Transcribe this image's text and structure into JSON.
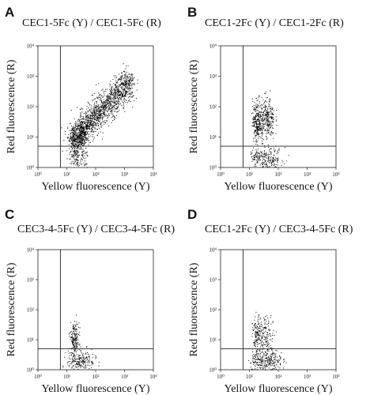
{
  "figure": {
    "panels": [
      {
        "letter": "A",
        "title": "CEC1-5Fc (Y) / CEC1-5Fc (R)"
      },
      {
        "letter": "B",
        "title": "CEC1-2Fc (Y) / CEC1-2Fc (R)"
      },
      {
        "letter": "C",
        "title": "CEC3-4-5Fc (Y) / CEC3-4-5Fc (R)"
      },
      {
        "letter": "D",
        "title": "CEC1-2Fc (Y) / CEC3-4-5Fc (R)"
      }
    ]
  },
  "chart_data": [
    {
      "type": "scatter",
      "title": "CEC1-5Fc (Y) / CEC1-5Fc (R)",
      "xlabel": "Yellow fluorescence (Y)",
      "ylabel": "Red fluorescence (R)",
      "x_scale": "log",
      "y_scale": "log",
      "xlim": [
        1,
        10000
      ],
      "ylim": [
        1,
        10000
      ],
      "xticks": [
        "10⁰",
        "10¹",
        "10²",
        "10³",
        "10⁴"
      ],
      "yticks": [
        "10⁰",
        "10¹",
        "10²",
        "10³",
        "10⁴"
      ],
      "gate": {
        "x": 6,
        "y": 5
      },
      "clusters": [
        {
          "kind": "diagonal",
          "x_range": [
            15,
            1500
          ],
          "y_at_x_min": 8,
          "y_at_x_max": 700,
          "spread": 0.25,
          "n": 1500
        },
        {
          "kind": "blob",
          "x": [
            18,
            1.25
          ],
          "y": [
            8,
            1.8
          ],
          "n": 160
        },
        {
          "kind": "blob",
          "x": [
            32,
            1.2
          ],
          "y": [
            12,
            1.8
          ],
          "n": 180
        },
        {
          "kind": "blob",
          "x": [
            20,
            1.25
          ],
          "y": [
            2,
            1.5
          ],
          "n": 60
        },
        {
          "kind": "blob",
          "x": [
            35,
            1.25
          ],
          "y": [
            2,
            1.5
          ],
          "n": 40
        }
      ]
    },
    {
      "type": "scatter",
      "title": "CEC1-2Fc (Y) / CEC1-2Fc (R)",
      "xlabel": "Yellow fluorescence (Y)",
      "ylabel": "Red fluorescence (R)",
      "x_scale": "log",
      "y_scale": "log",
      "xlim": [
        1,
        10000
      ],
      "ylim": [
        1,
        10000
      ],
      "xticks": [
        "10⁰",
        "10¹",
        "10²",
        "10³",
        "10⁴"
      ],
      "yticks": [
        "10⁰",
        "10¹",
        "10²",
        "10³",
        "10⁴"
      ],
      "gate": {
        "x": 6,
        "y": 5
      },
      "clusters": [
        {
          "kind": "blob",
          "x": [
            18,
            1.2
          ],
          "y": [
            35,
            2.2
          ],
          "n": 240
        },
        {
          "kind": "blob",
          "x": [
            40,
            1.35
          ],
          "y": [
            40,
            2.2
          ],
          "n": 280
        },
        {
          "kind": "blob",
          "x": [
            22,
            1.5
          ],
          "y": [
            2,
            1.5
          ],
          "n": 110
        },
        {
          "kind": "blob",
          "x": [
            55,
            1.6
          ],
          "y": [
            2,
            1.5
          ],
          "n": 130
        }
      ]
    },
    {
      "type": "scatter",
      "title": "CEC3-4-5Fc (Y) / CEC3-4-5Fc (R)",
      "xlabel": "Yellow fluorescence (Y)",
      "ylabel": "Red fluorescence (R)",
      "x_scale": "log",
      "y_scale": "log",
      "xlim": [
        1,
        10000
      ],
      "ylim": [
        1,
        10000
      ],
      "xticks": [
        "10⁰",
        "10¹",
        "10²",
        "10³",
        "10⁴"
      ],
      "yticks": [
        "10⁰",
        "10¹",
        "10²",
        "10³",
        "10⁴"
      ],
      "gate": {
        "x": 6,
        "y": 5
      },
      "clusters": [
        {
          "kind": "blob",
          "x": [
            18,
            1.2
          ],
          "y": [
            10,
            2.0
          ],
          "n": 180
        },
        {
          "kind": "blob",
          "x": [
            22,
            1.5
          ],
          "y": [
            2,
            1.5
          ],
          "n": 110
        },
        {
          "kind": "blob",
          "x": [
            45,
            1.5
          ],
          "y": [
            2,
            1.5
          ],
          "n": 90
        }
      ]
    },
    {
      "type": "scatter",
      "title": "CEC1-2Fc (Y) / CEC3-4-5Fc (R)",
      "xlabel": "Yellow fluorescence (Y)",
      "ylabel": "Red fluorescence (R)",
      "x_scale": "log",
      "y_scale": "log",
      "xlim": [
        1,
        10000
      ],
      "ylim": [
        1,
        10000
      ],
      "xticks": [
        "10⁰",
        "10¹",
        "10²",
        "10³",
        "10⁴"
      ],
      "yticks": [
        "10⁰",
        "10¹",
        "10²",
        "10³",
        "10⁴"
      ],
      "gate": {
        "x": 6,
        "y": 5
      },
      "clusters": [
        {
          "kind": "blob",
          "x": [
            18,
            1.2
          ],
          "y": [
            12,
            2.2
          ],
          "n": 150
        },
        {
          "kind": "blob",
          "x": [
            40,
            1.35
          ],
          "y": [
            14,
            2.2
          ],
          "n": 130
        },
        {
          "kind": "blob",
          "x": [
            22,
            1.5
          ],
          "y": [
            2,
            1.5
          ],
          "n": 120
        },
        {
          "kind": "blob",
          "x": [
            60,
            1.6
          ],
          "y": [
            2,
            1.5
          ],
          "n": 140
        }
      ]
    }
  ]
}
